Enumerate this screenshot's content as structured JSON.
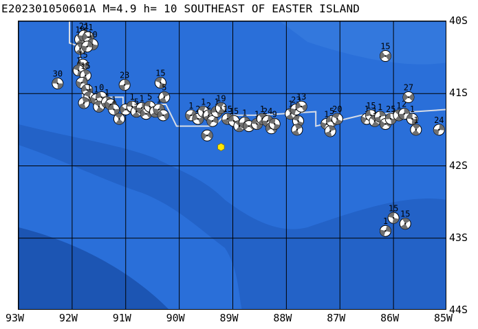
{
  "title": "E202301050601A M=4.9 h= 10 SOUTHEAST OF EASTER ISLAND",
  "map": {
    "region": "SOUTHEAST OF EASTER ISLAND",
    "lon_range": [
      -93,
      -85
    ],
    "lat_range": [
      -44,
      -40
    ],
    "colors": {
      "ocean": "#2a6fd9",
      "ocean_mid": "#2362c7",
      "ocean_deep": "#1c55b3",
      "grid": "#000000",
      "plate_boundary": "#d8dde6",
      "epicenter": "#ffe600",
      "beachball_dark": "#6f6f6f",
      "beachball_light": "#ffffff"
    },
    "x_ticks": [
      "93W",
      "92W",
      "91W",
      "90W",
      "89W",
      "88W",
      "87W",
      "86W",
      "85W"
    ],
    "y_ticks": [
      "40S",
      "41S",
      "42S",
      "43S",
      "44S"
    ],
    "epicenter": {
      "lon": -89.22,
      "lat": -41.74,
      "icon": "hexagon"
    },
    "plate_boundary": [
      [
        -92.05,
        -40.0
      ],
      [
        -92.05,
        -40.3
      ],
      [
        -91.85,
        -40.35
      ],
      [
        -91.85,
        -40.7
      ],
      [
        -91.8,
        -41.05
      ],
      [
        -91.05,
        -41.05
      ],
      [
        -91.05,
        -41.15
      ],
      [
        -90.25,
        -41.15
      ],
      [
        -90.05,
        -41.45
      ],
      [
        -89.35,
        -41.45
      ],
      [
        -89.15,
        -41.3
      ],
      [
        -88.6,
        -41.3
      ],
      [
        -88.1,
        -41.28
      ],
      [
        -87.45,
        -41.25
      ],
      [
        -87.45,
        -41.45
      ],
      [
        -86.6,
        -41.3
      ],
      [
        -85.0,
        -41.22
      ]
    ],
    "events": [
      {
        "lon": -92.27,
        "lat": -40.86,
        "label": "30"
      },
      {
        "lon": -91.85,
        "lat": -40.25,
        "label": "19"
      },
      {
        "lon": -91.78,
        "lat": -40.2,
        "label": "21"
      },
      {
        "lon": -91.7,
        "lat": -40.22,
        "label": "21"
      },
      {
        "lon": -91.62,
        "lat": -40.32,
        "label": "10"
      },
      {
        "lon": -91.85,
        "lat": -40.38,
        "label": ""
      },
      {
        "lon": -91.72,
        "lat": -40.35,
        "label": ""
      },
      {
        "lon": -91.8,
        "lat": -40.6,
        "label": "15"
      },
      {
        "lon": -91.88,
        "lat": -40.68,
        "label": "1"
      },
      {
        "lon": -91.75,
        "lat": -40.75,
        "label": "15"
      },
      {
        "lon": -91.82,
        "lat": -40.85,
        "label": ""
      },
      {
        "lon": -91.72,
        "lat": -40.95,
        "label": ""
      },
      {
        "lon": -91.68,
        "lat": -41.05,
        "label": "1"
      },
      {
        "lon": -91.78,
        "lat": -41.13,
        "label": ""
      },
      {
        "lon": -91.55,
        "lat": -41.08,
        "label": "1"
      },
      {
        "lon": -91.45,
        "lat": -41.05,
        "label": "0"
      },
      {
        "lon": -91.5,
        "lat": -41.18,
        "label": ""
      },
      {
        "lon": -91.35,
        "lat": -41.12,
        "label": "1"
      },
      {
        "lon": -91.28,
        "lat": -41.15,
        "label": ""
      },
      {
        "lon": -91.22,
        "lat": -41.22,
        "label": "1"
      },
      {
        "lon": -91.12,
        "lat": -41.35,
        "label": ""
      },
      {
        "lon": -91.02,
        "lat": -40.88,
        "label": "23"
      },
      {
        "lon": -91.0,
        "lat": -41.22,
        "label": ""
      },
      {
        "lon": -90.88,
        "lat": -41.18,
        "label": "1"
      },
      {
        "lon": -90.8,
        "lat": -41.25,
        "label": "5"
      },
      {
        "lon": -90.7,
        "lat": -41.2,
        "label": "1"
      },
      {
        "lon": -90.62,
        "lat": -41.28,
        "label": ""
      },
      {
        "lon": -90.55,
        "lat": -41.18,
        "label": "5"
      },
      {
        "lon": -90.45,
        "lat": -41.25,
        "label": ""
      },
      {
        "lon": -90.38,
        "lat": -41.22,
        "label": "1"
      },
      {
        "lon": -90.3,
        "lat": -41.3,
        "label": ""
      },
      {
        "lon": -90.35,
        "lat": -40.85,
        "label": "15"
      },
      {
        "lon": -90.28,
        "lat": -41.05,
        "label": "5"
      },
      {
        "lon": -89.78,
        "lat": -41.3,
        "label": "1"
      },
      {
        "lon": -89.65,
        "lat": -41.35,
        "label": "2"
      },
      {
        "lon": -89.55,
        "lat": -41.25,
        "label": "1"
      },
      {
        "lon": -89.45,
        "lat": -41.3,
        "label": "2"
      },
      {
        "lon": -89.38,
        "lat": -41.38,
        "label": ""
      },
      {
        "lon": -89.3,
        "lat": -41.25,
        "label": "1"
      },
      {
        "lon": -89.22,
        "lat": -41.2,
        "label": "19"
      },
      {
        "lon": -89.1,
        "lat": -41.35,
        "label": "15"
      },
      {
        "lon": -89.48,
        "lat": -41.58,
        "label": ""
      },
      {
        "lon": -88.98,
        "lat": -41.38,
        "label": "15"
      },
      {
        "lon": -88.88,
        "lat": -41.45,
        "label": ""
      },
      {
        "lon": -88.78,
        "lat": -41.4,
        "label": "1"
      },
      {
        "lon": -88.7,
        "lat": -41.45,
        "label": ""
      },
      {
        "lon": -88.55,
        "lat": -41.42,
        "label": "1"
      },
      {
        "lon": -88.45,
        "lat": -41.35,
        "label": "1"
      },
      {
        "lon": -88.35,
        "lat": -41.38,
        "label": "24"
      },
      {
        "lon": -88.28,
        "lat": -41.48,
        "label": ""
      },
      {
        "lon": -88.22,
        "lat": -41.42,
        "label": "9"
      },
      {
        "lon": -87.92,
        "lat": -41.28,
        "label": "1"
      },
      {
        "lon": -87.82,
        "lat": -41.22,
        "label": "23"
      },
      {
        "lon": -87.72,
        "lat": -41.18,
        "label": "13"
      },
      {
        "lon": -87.78,
        "lat": -41.38,
        "label": ""
      },
      {
        "lon": -87.8,
        "lat": -41.5,
        "label": ""
      },
      {
        "lon": -87.25,
        "lat": -41.42,
        "label": "1"
      },
      {
        "lon": -87.15,
        "lat": -41.38,
        "label": "5"
      },
      {
        "lon": -87.05,
        "lat": -41.35,
        "label": "20"
      },
      {
        "lon": -87.18,
        "lat": -41.52,
        "label": ""
      },
      {
        "lon": -86.5,
        "lat": -41.35,
        "label": "1"
      },
      {
        "lon": -86.42,
        "lat": -41.3,
        "label": "15"
      },
      {
        "lon": -86.35,
        "lat": -41.38,
        "label": "1"
      },
      {
        "lon": -86.25,
        "lat": -41.32,
        "label": "1"
      },
      {
        "lon": -86.15,
        "lat": -41.42,
        "label": ""
      },
      {
        "lon": -86.05,
        "lat": -41.35,
        "label": "25"
      },
      {
        "lon": -85.9,
        "lat": -41.3,
        "label": "1"
      },
      {
        "lon": -85.8,
        "lat": -41.28,
        "label": "2"
      },
      {
        "lon": -85.72,
        "lat": -41.05,
        "label": "27"
      },
      {
        "lon": -85.65,
        "lat": -41.35,
        "label": "1"
      },
      {
        "lon": -85.58,
        "lat": -41.5,
        "label": "1"
      },
      {
        "lon": -85.15,
        "lat": -41.5,
        "label": "24"
      },
      {
        "lon": -86.15,
        "lat": -40.48,
        "label": "15"
      },
      {
        "lon": -86.0,
        "lat": -42.72,
        "label": "15"
      },
      {
        "lon": -85.78,
        "lat": -42.8,
        "label": "15"
      },
      {
        "lon": -86.15,
        "lat": -42.9,
        "label": "1"
      }
    ]
  }
}
